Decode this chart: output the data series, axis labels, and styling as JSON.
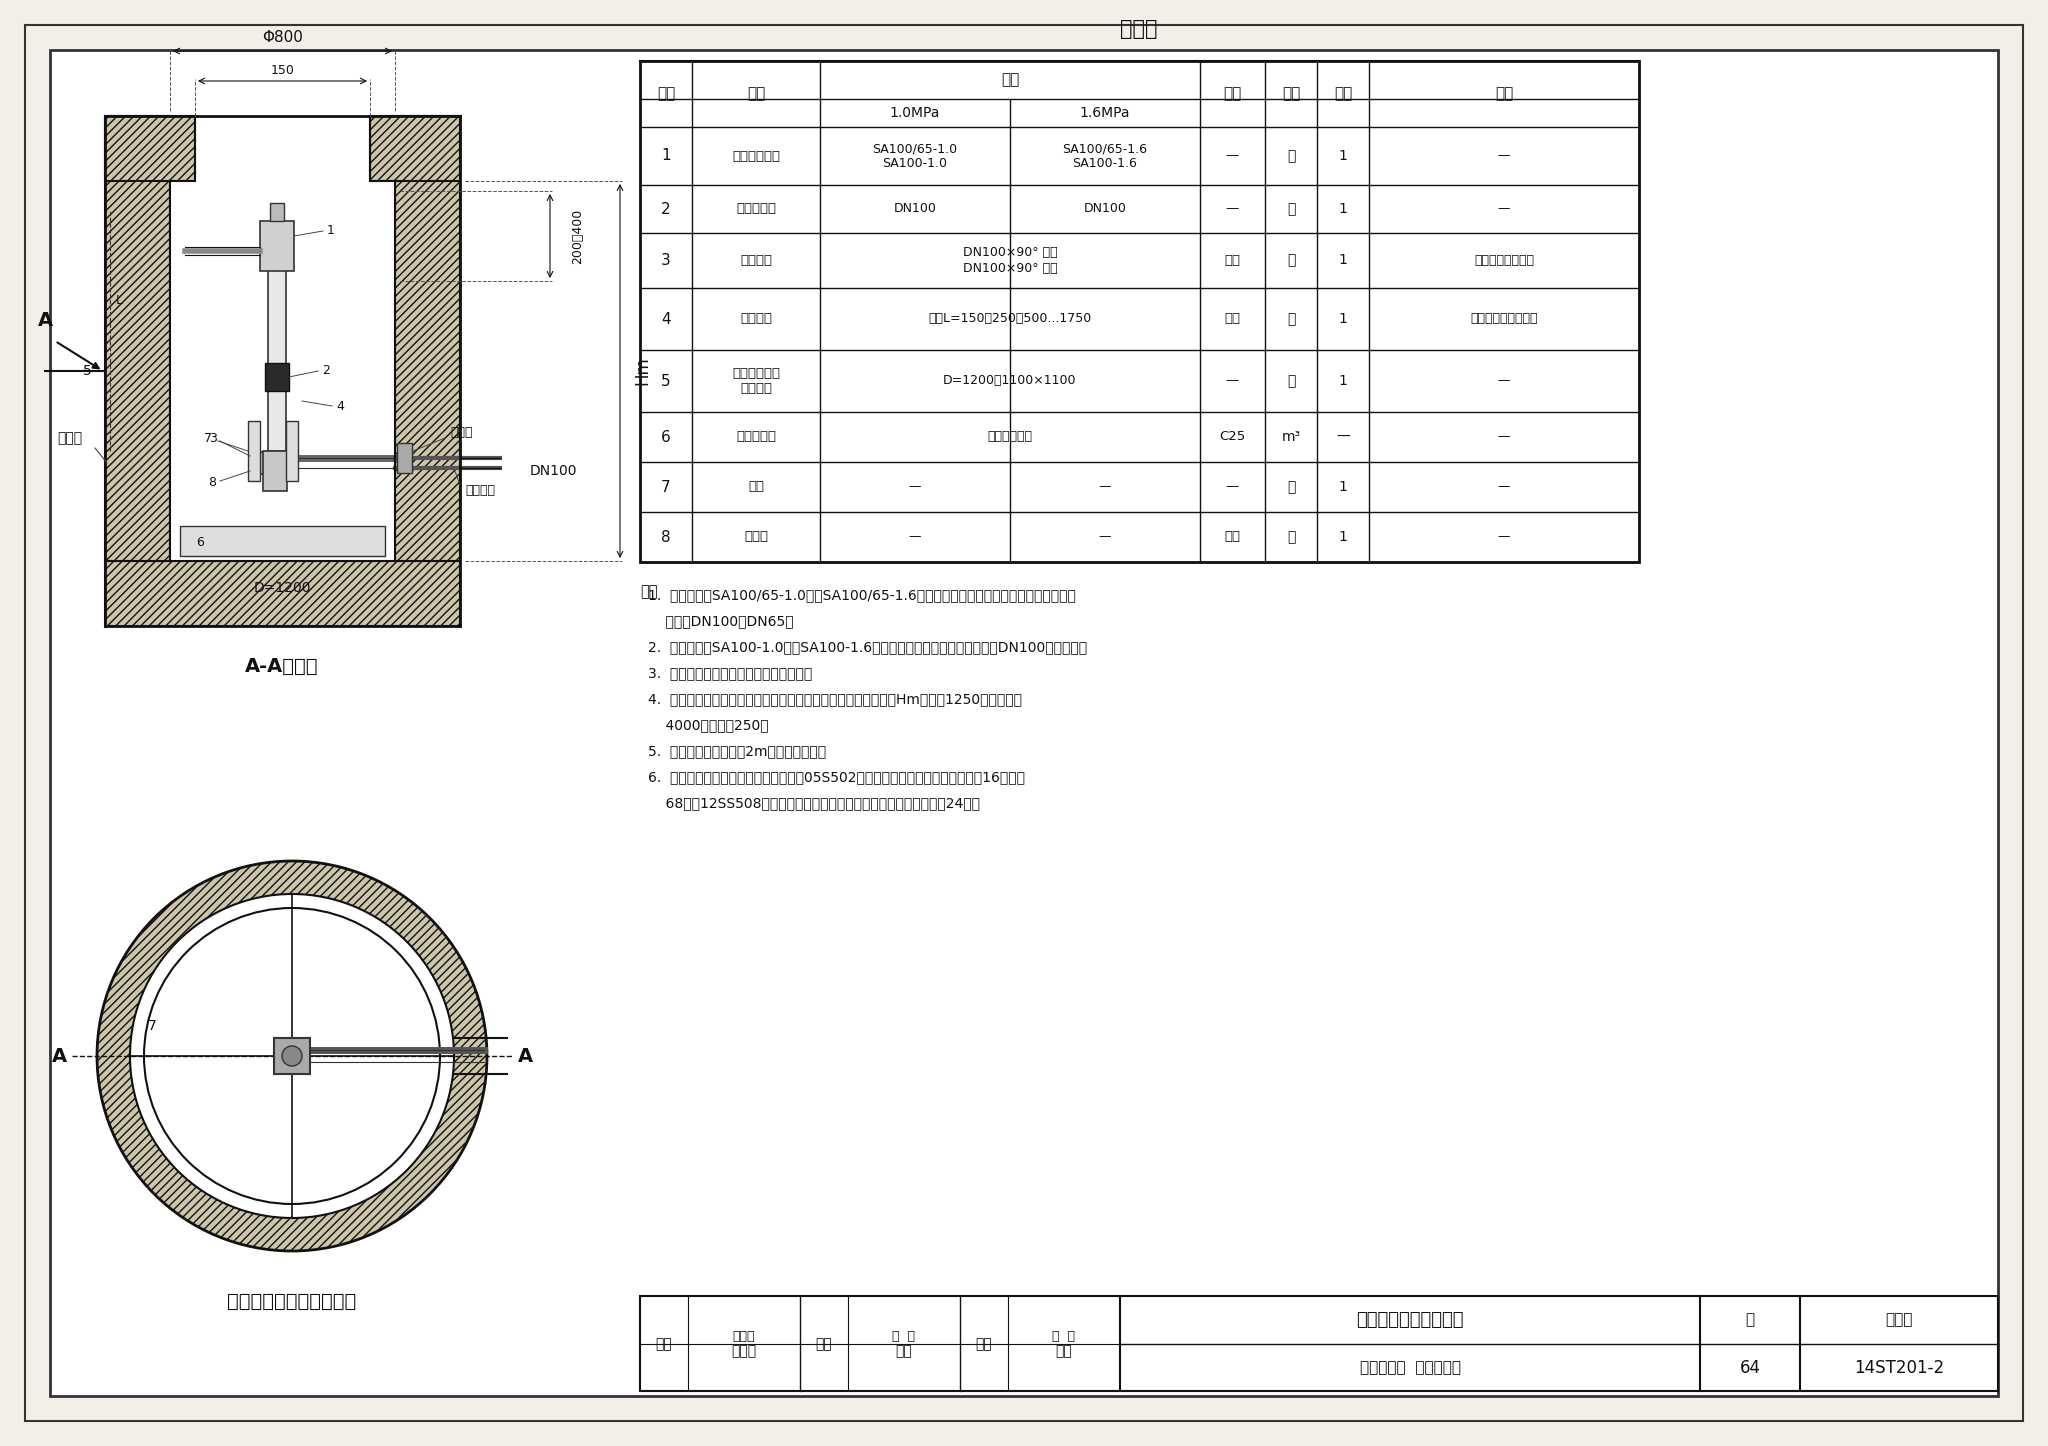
{
  "page_bg": "#f2efe8",
  "material_table": {
    "title": "材料表",
    "rows": [
      [
        "1",
        "地下式消火栓",
        "SA100/65-1.0\nSA100-1.0",
        "SA100/65-1.6\nSA100-1.6",
        "—",
        "套",
        "1",
        "—"
      ],
      [
        "2",
        "闸阀／蝶阀",
        "DN100",
        "DN100",
        "—",
        "个",
        "1",
        "—"
      ],
      [
        "3",
        "弯管底座",
        "DN100×90° 承法\nDN100×90° 双法",
        "",
        "铸铁",
        "个",
        "1",
        "与消火栓配套供应"
      ],
      [
        "4",
        "法兰接管",
        "长度L=150、250、500...1750",
        "",
        "铸铁",
        "个",
        "1",
        "由设计人员选定长度"
      ],
      [
        "5",
        "圆（矩）形立\n式阀门井",
        "D=1200或1100×1100",
        "",
        "—",
        "座",
        "1",
        "—"
      ],
      [
        "6",
        "混凝土支墩",
        "由设计者确定",
        "",
        "C25",
        "m³",
        "—",
        "—"
      ],
      [
        "7",
        "支架",
        "—",
        "—",
        "—",
        "套",
        "1",
        "—"
      ],
      [
        "8",
        "铸铁管",
        "—",
        "—",
        "铸铁",
        "套",
        "1",
        "—"
      ]
    ]
  },
  "notes": [
    "1.  消火栓采用SA100/65-1.0型或SA100/65-1.6型地下式消火栓。该消火栓有两个出水口，",
    "    分别为DN100或DN65。",
    "2.  消火栓采用SA100-1.0型或SA100-1.6型地下式消火栓，该消火栓有一个DN100的出水口。",
    "3.  管道及管件等防腐做法由设计人确定。",
    "4.  根据冻土埋深，可选用不同长度的法兰接管，使管道覆土深度Hm可以从1250逐档加高到",
    "    4000，每档为250。",
    "5.  当管道覆土深度大于2m时，需设支架。",
    "6.  圆（矩）形立式阀门井做法详见图集05S502《室外给水管道附属构筑物》中第16页、第",
    "    68页或12SS508《混凝土模块式室外给排水管道附属构筑物》中第24页。"
  ]
}
